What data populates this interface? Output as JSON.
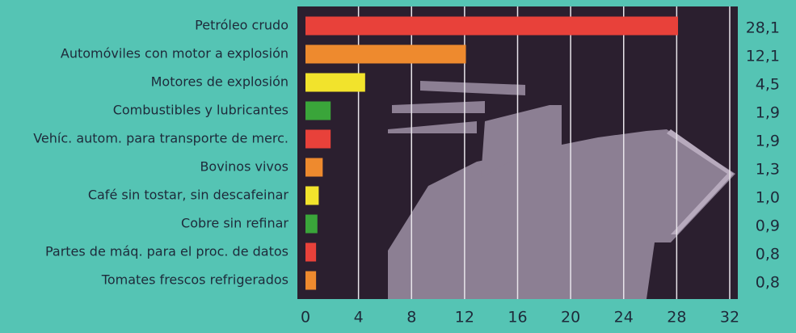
{
  "chart_data": {
    "type": "bar",
    "orientation": "horizontal",
    "categories": [
      "Petróleo crudo",
      "Automóviles con motor a explosión",
      "Motores de explosión",
      "Combustibles y lubricantes",
      "Vehíc. autom. para transporte de merc.",
      "Bovinos vivos",
      "Café sin tostar, sin descafeinar",
      "Cobre sin refinar",
      "Partes de máq. para el proc. de datos",
      "Tomates frescos refrigerados"
    ],
    "values": [
      28.1,
      12.1,
      4.5,
      1.9,
      1.9,
      1.3,
      1.0,
      0.9,
      0.8,
      0.8
    ],
    "value_labels": [
      "28,1",
      "12,1",
      "4,5",
      "1,9",
      "1,9",
      "1,3",
      "1,0",
      "0,9",
      "0,8",
      "0,8"
    ],
    "colors": [
      "#e8413a",
      "#ee8a2e",
      "#f2e32c",
      "#3aa53a",
      "#e8413a",
      "#ee8a2e",
      "#f2e32c",
      "#3aa53a",
      "#e8413a",
      "#ee8a2e"
    ],
    "xlim": [
      0,
      32
    ],
    "xticks": [
      0,
      4,
      8,
      12,
      16,
      20,
      24,
      28,
      32
    ],
    "grid": true
  }
}
